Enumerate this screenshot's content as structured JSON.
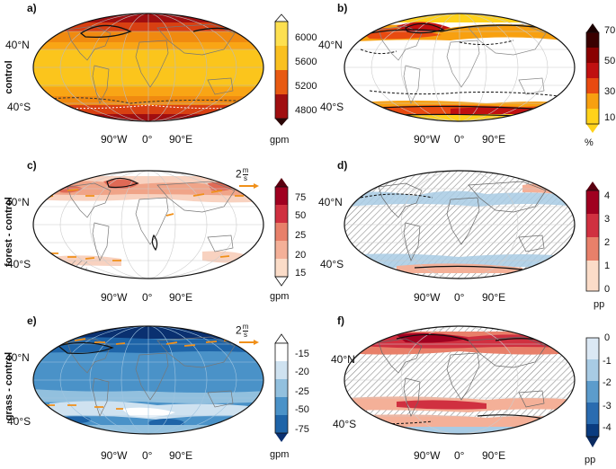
{
  "row_labels": [
    "control",
    "forest - control",
    "grass - control"
  ],
  "panels": [
    {
      "id": "a",
      "label": "a)",
      "lat_labels": [
        "40°N",
        "40°S"
      ],
      "lon_labels": [
        "90°W",
        "0°",
        "90°E"
      ],
      "colorbar": {
        "ticks": [
          "6000",
          "5600",
          "5200",
          "4800"
        ],
        "unit": "gpm",
        "colors": [
          "#fde050",
          "#f9c020",
          "#f08a10",
          "#d84012",
          "#a00e10",
          "#2a0606"
        ]
      }
    },
    {
      "id": "b",
      "label": "b)",
      "lat_labels": [
        "40°N",
        "40°S"
      ],
      "lon_labels": [
        "90°W",
        "0°",
        "90°E"
      ],
      "colorbar": {
        "ticks": [
          "70",
          "50",
          "30",
          "10"
        ],
        "unit": "%",
        "colors": [
          "#1a0000",
          "#6e0000",
          "#c01010",
          "#e84a10",
          "#f8a010",
          "#ffd21a"
        ]
      }
    },
    {
      "id": "c",
      "label": "c)",
      "lat_labels": [
        "40°N",
        "40°S"
      ],
      "lon_labels": [
        "90°W",
        "0°",
        "90°E"
      ],
      "wind_ref": "2",
      "wind_unit_num": "m",
      "wind_unit_den": "s",
      "colorbar": {
        "ticks": [
          "75",
          "50",
          "25",
          "20",
          "15"
        ],
        "unit": "gpm",
        "colors": [
          "#7a0018",
          "#c02030",
          "#e06a56",
          "#f0a488",
          "#f8d2c0",
          "#ffffff"
        ]
      }
    },
    {
      "id": "d",
      "label": "d)",
      "lat_labels": [
        "40°N",
        "40°S"
      ],
      "lon_labels": [
        "90°W",
        "0°",
        "90°E"
      ],
      "colorbar": {
        "ticks": [
          "4",
          "3",
          "2",
          "1",
          "0"
        ],
        "unit": "pp",
        "colors": [
          "#a00020",
          "#d03040",
          "#e8806a",
          "#f4b098",
          "#fbdcc8"
        ]
      }
    },
    {
      "id": "e",
      "label": "e)",
      "lat_labels": [
        "40°N",
        "40°S"
      ],
      "lon_labels": [
        "90°W",
        "0°",
        "90°E"
      ],
      "wind_ref": "2",
      "wind_unit_num": "m",
      "wind_unit_den": "s",
      "colorbar": {
        "ticks": [
          "-15",
          "-20",
          "-25",
          "-50",
          "-75"
        ],
        "unit": "gpm",
        "colors": [
          "#ffffff",
          "#cfe2f0",
          "#92c0de",
          "#4a92c8",
          "#1e64a8",
          "#0a3070"
        ]
      }
    },
    {
      "id": "f",
      "label": "f)",
      "lat_labels": [
        "40°N",
        "40°S"
      ],
      "lon_labels": [
        "90°W",
        "0°",
        "90°E"
      ],
      "colorbar": {
        "ticks": [
          "0",
          "-1",
          "-2",
          "-3",
          "-4"
        ],
        "unit": "pp",
        "colors": [
          "#dbe8f4",
          "#a8cbe4",
          "#5c9ccc",
          "#2a6cb0",
          "#0a3c80"
        ]
      }
    }
  ]
}
